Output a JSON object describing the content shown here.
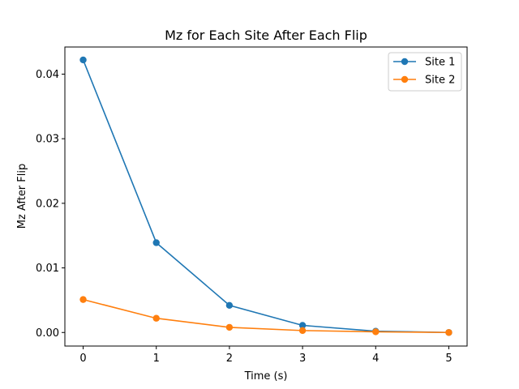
{
  "chart_data": {
    "type": "line",
    "title": "Mz for Each Site After Each Flip",
    "xlabel": "Time (s)",
    "ylabel": "Mz After Flip",
    "x": [
      0,
      1,
      2,
      3,
      4,
      5
    ],
    "xticks": [
      "0",
      "1",
      "2",
      "3",
      "4",
      "5"
    ],
    "yticks": [
      "0.00",
      "0.01",
      "0.02",
      "0.03",
      "0.04"
    ],
    "xlim": [
      -0.25,
      5.25
    ],
    "ylim": [
      -0.0021,
      0.0442
    ],
    "grid": false,
    "legend_position": "top-right",
    "series": [
      {
        "name": "Site 1",
        "color": "#1f77b4",
        "marker": "circle",
        "values": [
          0.0422,
          0.0139,
          0.0042,
          0.0011,
          0.0002,
          0.0
        ]
      },
      {
        "name": "Site 2",
        "color": "#ff7f0e",
        "marker": "circle",
        "values": [
          0.0051,
          0.0022,
          0.0008,
          0.0003,
          0.0001,
          0.0
        ]
      }
    ]
  }
}
